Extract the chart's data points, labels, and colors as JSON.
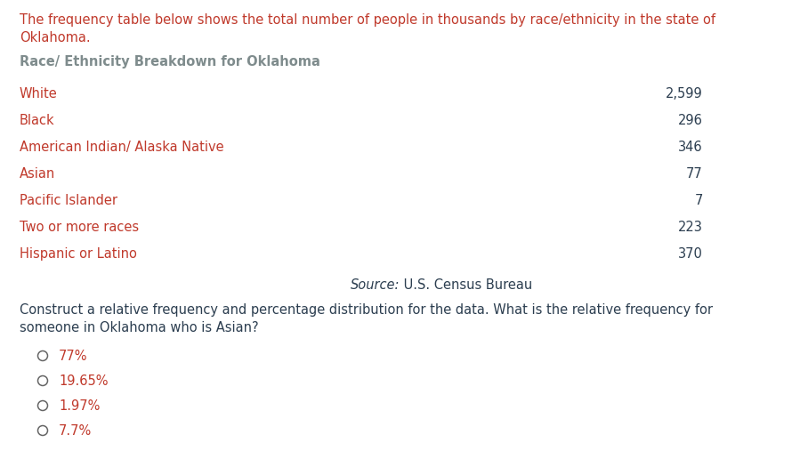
{
  "background_color": "#ffffff",
  "intro_line1": "The frequency table below shows the total number of people in thousands by race/ethnicity in the state of",
  "intro_line2": "Oklahoma.",
  "intro_color": "#c0392b",
  "intro_fontsize": 10.5,
  "table_title": "Race/ Ethnicity Breakdown for Oklahoma",
  "table_title_color": "#7f8c8d",
  "table_title_fontsize": 10.5,
  "races": [
    "White",
    "Black",
    "American Indian/ Alaska Native",
    "Asian",
    "Pacific Islander",
    "Two or more races",
    "Hispanic or Latino"
  ],
  "values": [
    "2,599",
    "296",
    "346",
    "77",
    "7",
    "223",
    "370"
  ],
  "race_color": "#c0392b",
  "value_color": "#2c3e50",
  "row_fontsize": 10.5,
  "source_italic": "Source:",
  "source_normal": "U.S. Census Bureau",
  "source_color": "#2c3e50",
  "source_fontsize": 10.5,
  "q_seg1": [
    [
      "Construct a relative frequency and percentage distribution for the data. What is the relative frequency for",
      "#2c3e50"
    ]
  ],
  "q_seg2": [
    [
      "someone in Oklahoma who is Asian?",
      "#2c3e50"
    ]
  ],
  "question_fontsize": 10.5,
  "options": [
    "77%",
    "19.65%",
    "1.97%",
    "7.7%"
  ],
  "option_color": "#c0392b",
  "option_fontsize": 10.5,
  "circle_color": "#666666"
}
